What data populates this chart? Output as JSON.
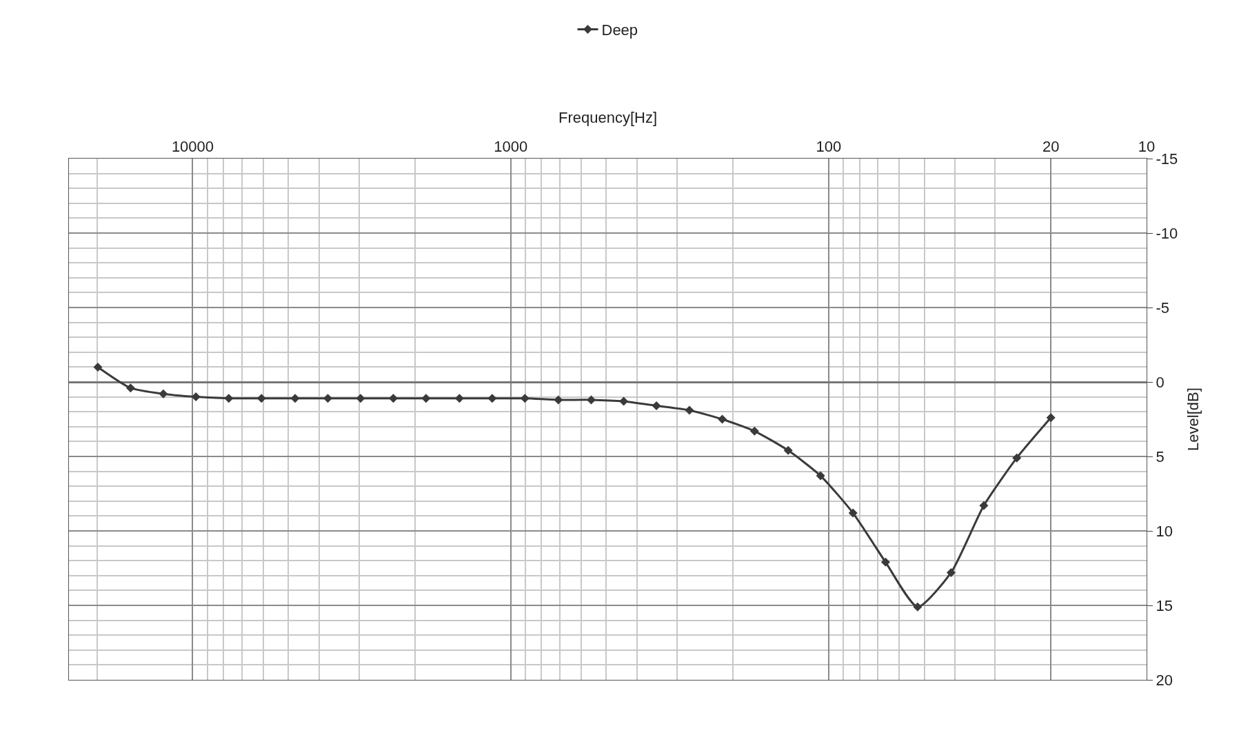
{
  "chart_data": {
    "type": "line",
    "xlabel": "Frequency[Hz]",
    "ylabel": "Level[dB]",
    "x": [
      20,
      25.6,
      32.5,
      41.2,
      52.5,
      66.2,
      83.8,
      106,
      134,
      171,
      216,
      274,
      348,
      441,
      558,
      708,
      902,
      1143,
      1449,
      1846,
      2339,
      2965,
      3758,
      4763,
      6076,
      7700,
      9770,
      12370,
      15680,
      19870
    ],
    "series": [
      {
        "name": "Deep",
        "color": "#3a3a3a",
        "values": [
          2.4,
          5.1,
          8.3,
          12.8,
          15.1,
          12.1,
          8.8,
          6.3,
          4.6,
          3.3,
          2.5,
          1.9,
          1.6,
          1.3,
          1.2,
          1.2,
          1.1,
          1.1,
          1.1,
          1.1,
          1.1,
          1.1,
          1.1,
          1.1,
          1.1,
          1.1,
          1.0,
          0.8,
          0.4,
          -1.0
        ]
      }
    ],
    "log": "x",
    "xlim": [
      24500,
      10
    ],
    "xticks": [
      10,
      20,
      100,
      1000,
      10000
    ],
    "ylim": [
      20,
      -15
    ],
    "yticks": [
      -15,
      -10,
      -5,
      0,
      5,
      10,
      15,
      20
    ],
    "grid": true,
    "legend": "top",
    "marker": "diamond",
    "line_style": "solid"
  }
}
